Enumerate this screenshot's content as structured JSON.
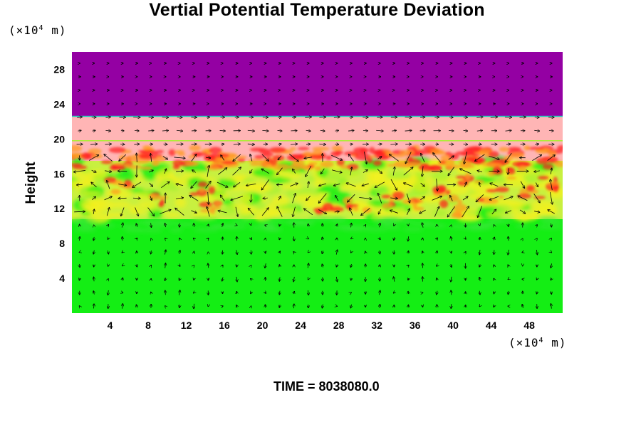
{
  "title": "Vertial Potential Temperature Deviation",
  "y_unit": {
    "prefix": "(×10",
    "exp": "4",
    "suffix": " m)"
  },
  "x_unit": {
    "prefix": "(×10",
    "exp": "4",
    "suffix": " m)"
  },
  "ylabel": "Height",
  "time_label": "TIME = 8038080.0",
  "chart_data": {
    "type": "heatmap",
    "title": "Vertial Potential Temperature Deviation",
    "xlabel": "",
    "ylabel": "Height",
    "xlim": [
      0,
      51.5
    ],
    "ylim": [
      0,
      30
    ],
    "xticks": [
      4,
      8,
      12,
      16,
      20,
      24,
      28,
      32,
      36,
      40,
      44,
      48
    ],
    "yticks": [
      4,
      8,
      12,
      16,
      20,
      24,
      28
    ],
    "overlay": "velocity vector arrows",
    "layers": [
      {
        "name": "lower layer",
        "y_from": 0,
        "y_to": 10.8,
        "color": "#14ee14"
      },
      {
        "name": "turbulent layer",
        "y_from": 10.8,
        "y_to": 17.5,
        "color": "#c8f040"
      },
      {
        "name": "pink layer",
        "y_from": 17.5,
        "y_to": 22.6,
        "color": "#ffb5b5"
      },
      {
        "name": "upper layer",
        "y_from": 22.6,
        "y_to": 30,
        "color": "#9400a3"
      }
    ],
    "colors": {
      "purple": "#9400a3",
      "pink": "#ffb5b5",
      "green": "#14ee14",
      "yellow": "#f0f020",
      "orange": "#ff9a20",
      "red": "#ff2020",
      "lime": "#a8f030",
      "cyan": "#20d0c0"
    }
  }
}
